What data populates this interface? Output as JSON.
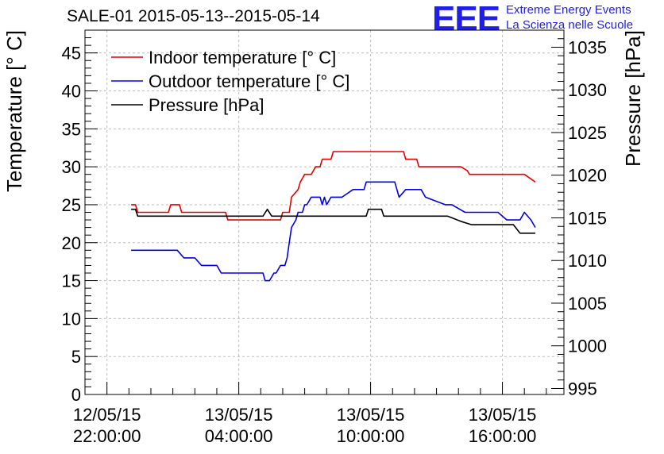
{
  "header": {
    "title": "SALE-01 2015-05-13--2015-05-14",
    "logo_text": "EEE",
    "logo_line1": "Extreme Energy Events",
    "logo_line2": "La Scienza nelle Scuole",
    "logo_color": "#1f1fe6"
  },
  "chart_data": {
    "type": "line",
    "title": "SALE-01 2015-05-13--2015-05-14",
    "ylabel": "Temperature [° C]",
    "y2label": "Pressure [hPa]",
    "xlabel": "",
    "ylim": [
      0,
      48
    ],
    "y2lim": [
      994.3,
      1037
    ],
    "xlim": [
      -1.0,
      20.8
    ],
    "yticks": [
      0,
      5,
      10,
      15,
      20,
      25,
      30,
      35,
      40,
      45
    ],
    "y2ticks": [
      995,
      1000,
      1005,
      1010,
      1015,
      1020,
      1025,
      1030,
      1035
    ],
    "xticks": [
      {
        "x": 0,
        "line1": "12/05/15",
        "line2": "22:00:00"
      },
      {
        "x": 6,
        "line1": "13/05/15",
        "line2": "04:00:00"
      },
      {
        "x": 12,
        "line1": "13/05/15",
        "line2": "10:00:00"
      },
      {
        "x": 18,
        "line1": "13/05/15",
        "line2": "16:00:00"
      }
    ],
    "x_unit": "hours since 12/05/15 22:00:00",
    "grid": true,
    "legend_position": "top-left",
    "series": [
      {
        "name": "Indoor temperature [° C]",
        "axis": "left",
        "color": "#e60000",
        "x": [
          1.1,
          1.3,
          1.4,
          2.8,
          2.9,
          3.3,
          3.4,
          5.4,
          5.5,
          7.9,
          8.0,
          8.3,
          8.4,
          8.7,
          8.8,
          9.0,
          9.3,
          9.5,
          9.7,
          9.8,
          10.0,
          10.2,
          10.3,
          10.5,
          10.6,
          11.2,
          11.4,
          12.9,
          13.0,
          13.5,
          13.6,
          14.1,
          14.2,
          16.0,
          16.1,
          16.4,
          16.5,
          17.8,
          17.9,
          18.8,
          19.0,
          19.5
        ],
        "y": [
          25,
          25,
          24,
          24,
          25,
          25,
          24,
          24,
          23,
          23,
          24,
          24,
          26,
          27,
          28,
          29,
          29,
          30,
          30,
          31,
          31,
          31,
          32,
          32,
          32,
          32,
          32,
          32,
          32,
          32,
          31,
          31,
          30,
          30,
          30,
          29.5,
          29,
          29,
          29,
          29,
          29,
          28
        ]
      },
      {
        "name": "Outdoor temperature [° C]",
        "axis": "left",
        "color": "#0000e6",
        "x": [
          1.1,
          3.2,
          3.5,
          4.0,
          4.3,
          4.5,
          5.0,
          5.2,
          6.0,
          7.1,
          7.2,
          7.4,
          7.6,
          7.7,
          7.9,
          8.1,
          8.2,
          8.3,
          8.4,
          8.6,
          8.7,
          8.9,
          9.0,
          9.1,
          9.3,
          9.4,
          9.7,
          9.8,
          9.9,
          10.0,
          10.2,
          10.6,
          10.7,
          11.2,
          11.3,
          11.7,
          11.8,
          12.9,
          13.1,
          13.3,
          13.6,
          13.7,
          14.3,
          14.5,
          15.4,
          15.7,
          16.3,
          16.5,
          17.5,
          17.6,
          17.8,
          18.2,
          18.4,
          18.8,
          19.0,
          19.3,
          19.5
        ],
        "y": [
          19,
          19,
          18,
          18,
          17,
          17,
          17,
          16,
          16,
          16,
          15,
          15,
          16,
          16,
          17,
          17,
          18,
          20,
          22,
          23,
          24,
          24,
          25,
          25,
          26,
          26,
          26,
          25,
          26,
          25,
          26,
          26,
          26,
          27,
          27,
          27,
          28,
          28,
          28,
          26,
          27,
          27,
          27,
          26,
          25,
          25,
          24,
          24,
          24,
          24,
          24,
          23,
          23,
          23,
          24,
          23,
          22
        ]
      },
      {
        "name": "Pressure [hPa]",
        "axis": "right",
        "color": "#000000",
        "x": [
          1.1,
          1.3,
          1.4,
          7.1,
          7.3,
          7.5,
          11.8,
          11.9,
          12.5,
          12.6,
          14.2,
          15.5,
          16.1,
          16.6,
          17.5,
          18.5,
          18.8,
          19.5
        ],
        "y": [
          1016,
          1016,
          1015.2,
          1015.2,
          1016,
          1015.2,
          1015.2,
          1016,
          1016,
          1015.2,
          1015.2,
          1015.2,
          1014.6,
          1014.2,
          1014.2,
          1014.2,
          1013.2,
          1013.2
        ]
      }
    ]
  }
}
